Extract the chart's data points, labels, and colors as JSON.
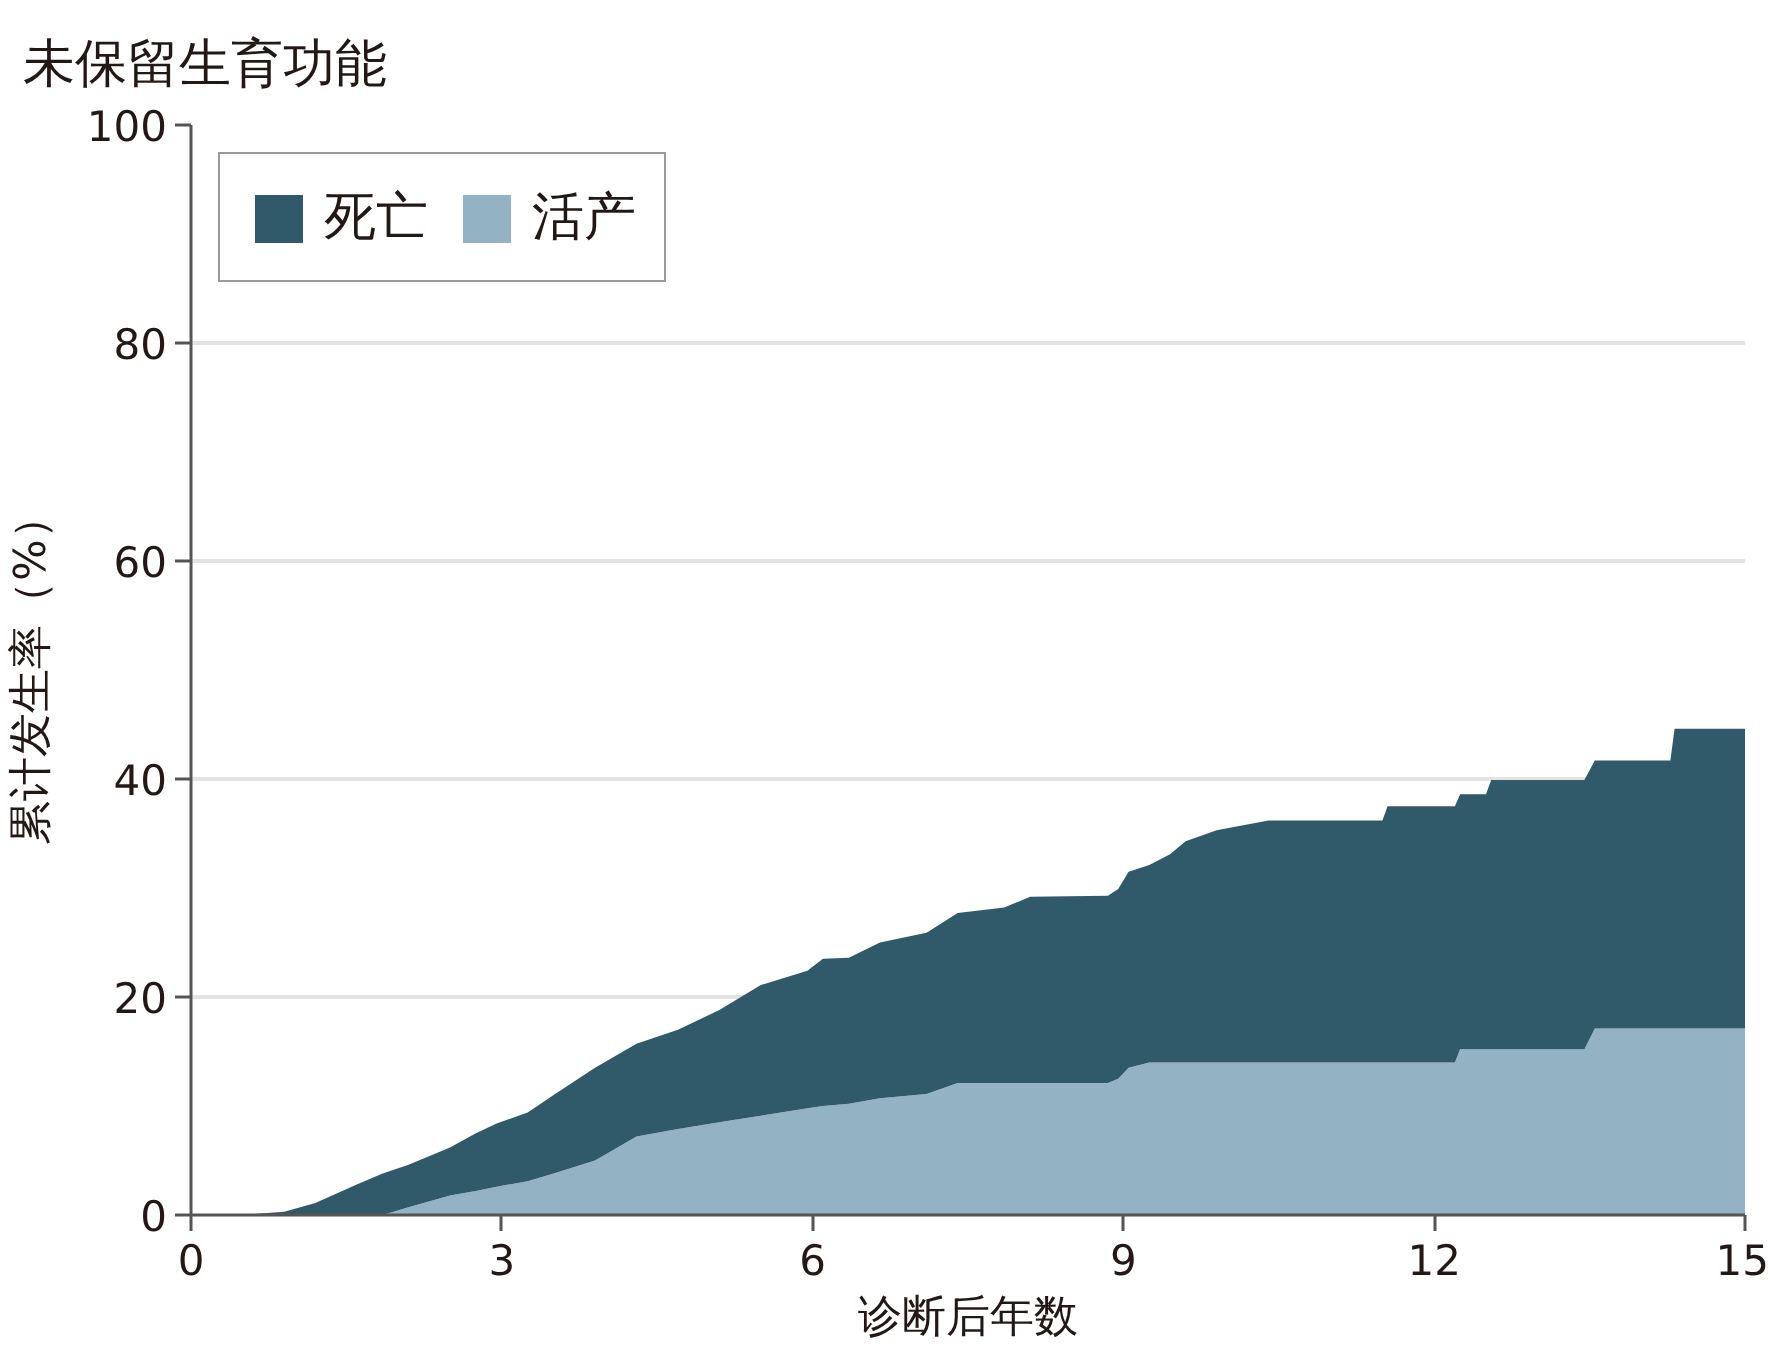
{
  "chart_data": {
    "type": "area",
    "title": "未保留生育功能",
    "xlabel": "诊断后年数",
    "ylabel": "累计发生率（%）",
    "stacked": true,
    "x": [
      0,
      0.5,
      0.9,
      1.2,
      1.6,
      1.85,
      2.1,
      2.5,
      2.75,
      2.95,
      3.25,
      3.5,
      3.9,
      4.3,
      4.7,
      5.1,
      5.5,
      5.95,
      6.1,
      6.35,
      6.65,
      7.1,
      7.4,
      7.85,
      8.1,
      8.85,
      8.95,
      9.05,
      9.25,
      9.45,
      9.6,
      9.9,
      10.4,
      11.5,
      11.55,
      12.2,
      12.25,
      12.5,
      12.55,
      13.45,
      13.55,
      14.28,
      14.32,
      15
    ],
    "xlim": [
      0,
      15
    ],
    "xticks": [
      0,
      3,
      6,
      9,
      12,
      15
    ],
    "ylim": [
      0,
      100
    ],
    "yticks": [
      0,
      20,
      40,
      60,
      80,
      100
    ],
    "grid": "y",
    "legend": "top left",
    "series": [
      {
        "name": "活产",
        "color": "#93b3c4",
        "values": [
          0,
          0,
          0,
          0,
          0,
          0,
          0.7,
          1.8,
          2.2,
          2.6,
          3.1,
          3.8,
          5.0,
          7.2,
          7.9,
          8.5,
          9.1,
          9.8,
          10.0,
          10.2,
          10.7,
          11.1,
          12.1,
          12.1,
          12.1,
          12.1,
          12.5,
          13.5,
          14.0,
          14.0,
          14.0,
          14.0,
          14.0,
          14.0,
          14.0,
          14.0,
          15.2,
          15.2,
          15.2,
          15.2,
          17.1,
          17.1,
          17.1,
          17.1
        ]
      },
      {
        "name": "死亡",
        "color": "#305a69",
        "values": [
          0,
          0,
          0.3,
          1.1,
          2.8,
          3.8,
          3.9,
          4.4,
          5.3,
          5.8,
          6.3,
          7.2,
          8.5,
          8.5,
          9.1,
          10.3,
          12.0,
          12.6,
          13.5,
          13.4,
          14.3,
          14.8,
          15.6,
          16.1,
          17.1,
          17.2,
          17.4,
          18.0,
          18.1,
          19.1,
          20.3,
          21.3,
          22.2,
          22.2,
          23.5,
          23.5,
          23.4,
          23.4,
          24.7,
          24.7,
          24.6,
          24.6,
          27.5,
          27.5
        ]
      }
    ]
  }
}
